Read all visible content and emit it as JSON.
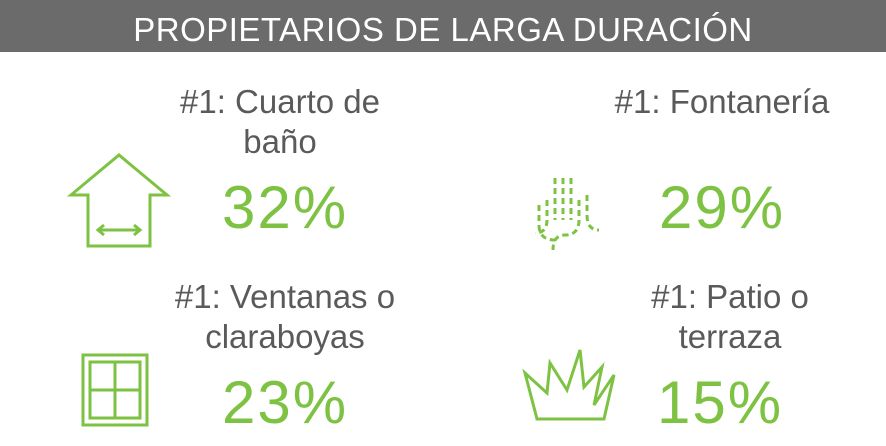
{
  "header": {
    "title": "PROPIETARIOS DE LARGA DURACIÓN"
  },
  "items": [
    {
      "label_lines": [
        "#1: Cuarto de",
        "baño"
      ],
      "value": "32%"
    },
    {
      "label_lines": [
        "#1: Fontanería"
      ],
      "value": "29%"
    },
    {
      "label_lines": [
        "#1: Ventanas o",
        "claraboyas"
      ],
      "value": "23%"
    },
    {
      "label_lines": [
        "#1: Patio o",
        "terraza"
      ],
      "value": "15%"
    }
  ]
}
